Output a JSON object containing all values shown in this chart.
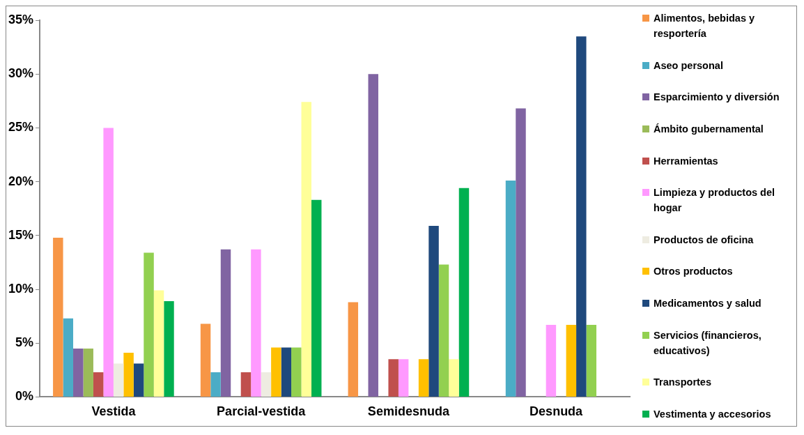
{
  "chart_data": {
    "type": "bar",
    "categories": [
      "Vestida",
      "Parcial-vestida",
      "Semidesnuda",
      "Desnuda"
    ],
    "series": [
      {
        "name": "Alimentos, bebidas y resportería",
        "color": "#f79646",
        "values": [
          14.8,
          6.8,
          8.8,
          0
        ]
      },
      {
        "name": "Aseo personal",
        "color": "#4bacc6",
        "values": [
          7.3,
          2.3,
          0,
          20.1
        ]
      },
      {
        "name": "Esparcimiento y diversión",
        "color": "#8064a2",
        "values": [
          4.5,
          13.7,
          30,
          26.8
        ]
      },
      {
        "name": "Ámbito gubernamental",
        "color": "#9bbb59",
        "values": [
          4.5,
          0,
          0,
          0
        ]
      },
      {
        "name": "Herramientas",
        "color": "#c0504d",
        "values": [
          2.3,
          2.3,
          3.5,
          0
        ]
      },
      {
        "name": "Limpieza y productos del hogar",
        "color": "#ff99ff",
        "values": [
          25,
          13.7,
          3.5,
          6.7
        ]
      },
      {
        "name": "Productos de oficina",
        "color": "#eeece1",
        "values": [
          3.1,
          2.3,
          0,
          0
        ]
      },
      {
        "name": "Otros productos",
        "color": "#ffc000",
        "values": [
          4.1,
          4.6,
          3.5,
          6.7
        ]
      },
      {
        "name": "Medicamentos y salud",
        "color": "#1f497d",
        "values": [
          3.1,
          4.6,
          15.9,
          33.5
        ]
      },
      {
        "name": "Servicios (financieros, educativos)",
        "color": "#92d050",
        "values": [
          13.4,
          4.6,
          12.3,
          6.7
        ]
      },
      {
        "name": "Transportes",
        "color": "#ffff99",
        "values": [
          9.9,
          27.4,
          3.5,
          0
        ]
      },
      {
        "name": "Vestimenta y accesorios",
        "color": "#00b050",
        "values": [
          8.9,
          18.3,
          19.4,
          0
        ]
      }
    ],
    "ylim": [
      0,
      35
    ],
    "yticks": [
      {
        "value": 0,
        "label": "0%"
      },
      {
        "value": 5,
        "label": "5%"
      },
      {
        "value": 10,
        "label": "10%"
      },
      {
        "value": 15,
        "label": "15%"
      },
      {
        "value": 20,
        "label": "20%"
      },
      {
        "value": 25,
        "label": "25%"
      },
      {
        "value": 30,
        "label": "30%"
      },
      {
        "value": 35,
        "label": "35%"
      }
    ],
    "grid": false,
    "legend": "right"
  }
}
